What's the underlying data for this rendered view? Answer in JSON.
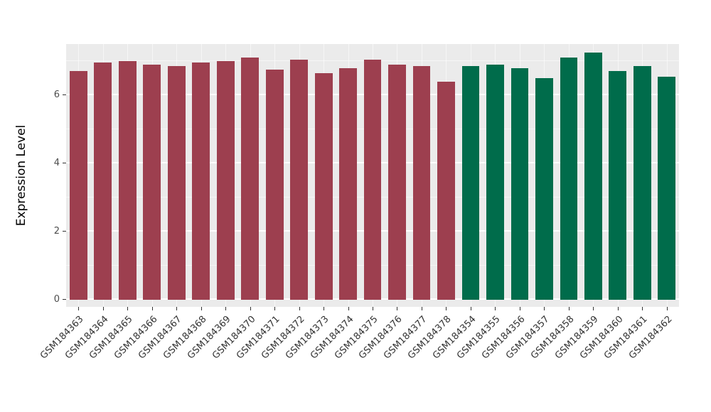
{
  "chart_data": {
    "type": "bar",
    "title": "",
    "xlabel": "",
    "ylabel": "Expression Level",
    "ylim": [
      0,
      7.5
    ],
    "yticks": [
      0,
      2,
      4,
      6
    ],
    "minor_ticks": [
      1,
      3,
      5,
      7
    ],
    "grid": "on",
    "legend": "none",
    "categories": [
      "GSM184363",
      "GSM184364",
      "GSM184365",
      "GSM184366",
      "GSM184367",
      "GSM184368",
      "GSM184369",
      "GSM184370",
      "GSM184371",
      "GSM184372",
      "GSM184373",
      "GSM184374",
      "GSM184375",
      "GSM184376",
      "GSM184377",
      "GSM184378",
      "GSM184354",
      "GSM184355",
      "GSM184356",
      "GSM184357",
      "GSM184358",
      "GSM184359",
      "GSM184360",
      "GSM184361",
      "GSM184362"
    ],
    "values": [
      6.7,
      6.95,
      7.0,
      6.9,
      6.85,
      6.95,
      7.0,
      7.1,
      6.75,
      7.05,
      6.65,
      6.8,
      7.05,
      6.9,
      6.85,
      6.4,
      6.85,
      6.9,
      6.8,
      6.5,
      7.1,
      7.25,
      6.7,
      6.85,
      6.55
    ],
    "bar_colors": [
      "#9d3f4f",
      "#9d3f4f",
      "#9d3f4f",
      "#9d3f4f",
      "#9d3f4f",
      "#9d3f4f",
      "#9d3f4f",
      "#9d3f4f",
      "#9d3f4f",
      "#9d3f4f",
      "#9d3f4f",
      "#9d3f4f",
      "#9d3f4f",
      "#9d3f4f",
      "#9d3f4f",
      "#9d3f4f",
      "#006c4b",
      "#006c4b",
      "#006c4b",
      "#006c4b",
      "#006c4b",
      "#006c4b",
      "#006c4b",
      "#006c4b",
      "#006c4b"
    ],
    "colors": {
      "group_red": "#9d3f4f",
      "group_green": "#006c4b",
      "panel_background": "#EBEBEB",
      "gridline": "#FFFFFF"
    }
  }
}
